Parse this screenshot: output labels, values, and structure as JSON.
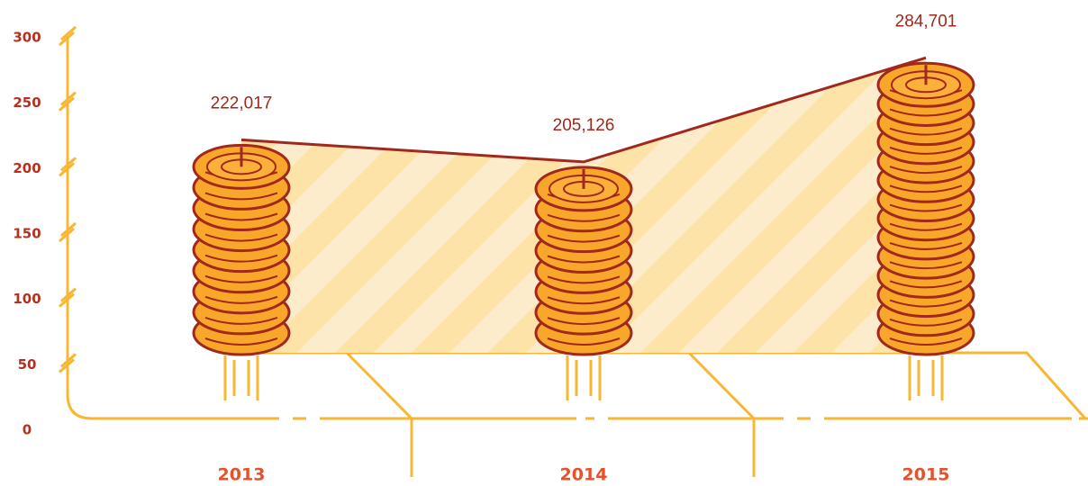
{
  "chart_data": {
    "type": "bar",
    "categories": [
      "2013",
      "2014",
      "2015"
    ],
    "values": [
      222.017,
      205.126,
      284.701
    ],
    "value_labels": [
      "222,017",
      "205,126",
      "284,701"
    ],
    "color": "#f9a72b",
    "ylim": [
      0,
      300
    ],
    "yticks": [
      0,
      50,
      100,
      150,
      200,
      250,
      300
    ]
  }
}
